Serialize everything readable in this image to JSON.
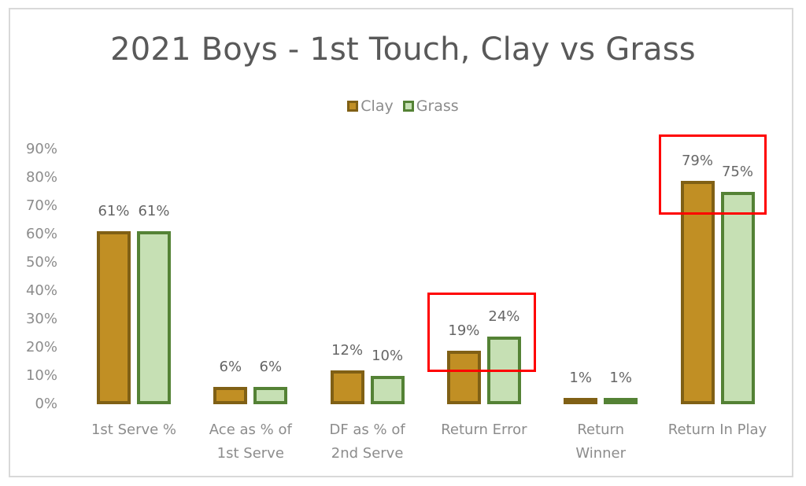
{
  "chart_data": {
    "type": "bar",
    "title": "2021 Boys - 1st Touch, Clay vs Grass",
    "xlabel": "",
    "ylabel": "",
    "categories": [
      "1st Serve %",
      "Ace as % of 1st Serve",
      "DF as % of 2nd Serve",
      "Return Error",
      "Return Winner",
      "Return In Play"
    ],
    "category_lines": [
      [
        "1st Serve %"
      ],
      [
        "Ace as % of",
        "1st Serve"
      ],
      [
        "DF as % of",
        "2nd Serve"
      ],
      [
        "Return Error"
      ],
      [
        "Return",
        "Winner"
      ],
      [
        "Return In Play"
      ]
    ],
    "series": [
      {
        "name": "Clay",
        "values": [
          61,
          6,
          12,
          19,
          1,
          79
        ],
        "labels": [
          "61%",
          "6%",
          "12%",
          "19%",
          "1%",
          "79%"
        ],
        "fill": "#c18f24",
        "border": "#806015"
      },
      {
        "name": "Grass",
        "values": [
          61,
          6,
          10,
          24,
          1,
          75
        ],
        "labels": [
          "61%",
          "6%",
          "10%",
          "24%",
          "1%",
          "75%"
        ],
        "fill": "#c6e0b4",
        "border": "#548235"
      }
    ],
    "ylim": [
      0,
      90
    ],
    "yticks": [
      "0%",
      "10%",
      "20%",
      "30%",
      "40%",
      "50%",
      "60%",
      "70%",
      "80%",
      "90%"
    ],
    "grid": false,
    "legend_position": "top",
    "annotations": [
      {
        "type": "highlight-box",
        "color": "#ff0000",
        "category": "Return Error"
      },
      {
        "type": "highlight-box",
        "color": "#ff0000",
        "category": "Return In Play"
      }
    ]
  },
  "legend": {
    "clay": "Clay",
    "grass": "Grass"
  }
}
